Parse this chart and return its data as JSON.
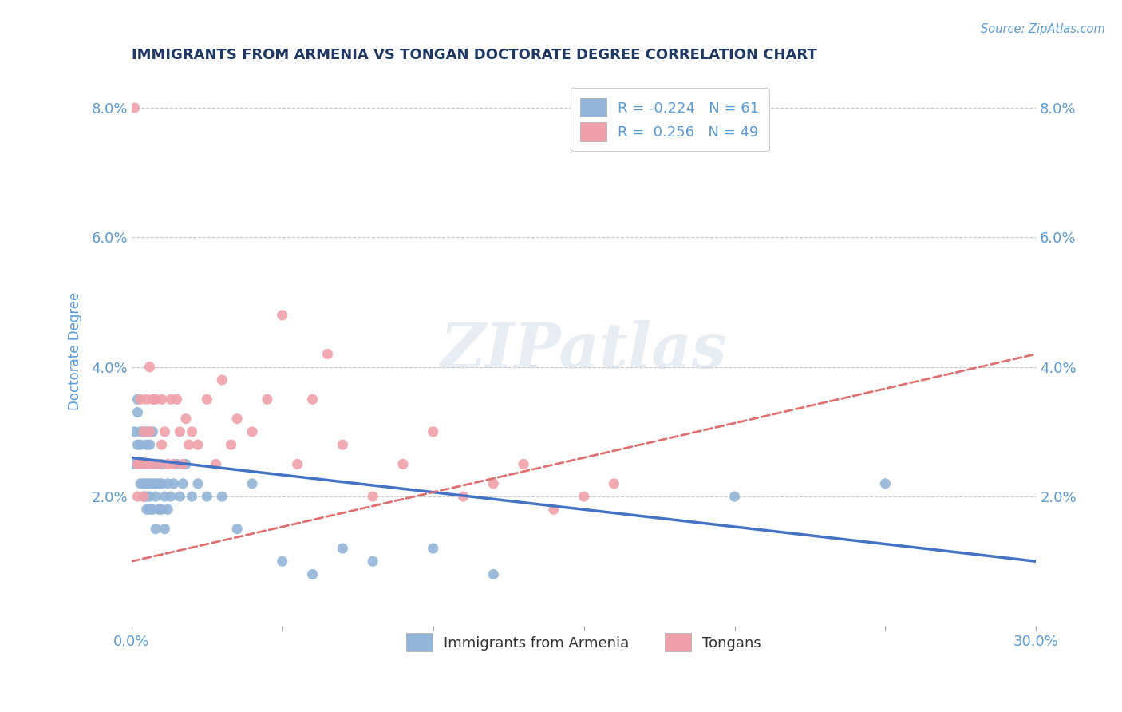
{
  "title": "IMMIGRANTS FROM ARMENIA VS TONGAN DOCTORATE DEGREE CORRELATION CHART",
  "source": "Source: ZipAtlas.com",
  "ylabel": "Doctorate Degree",
  "xlim": [
    0.0,
    0.3
  ],
  "ylim": [
    0.0,
    0.085
  ],
  "xticks": [
    0.0,
    0.05,
    0.1,
    0.15,
    0.2,
    0.25,
    0.3
  ],
  "xtick_labels": [
    "0.0%",
    "",
    "",
    "",
    "",
    "",
    "30.0%"
  ],
  "yticks": [
    0.0,
    0.02,
    0.04,
    0.06,
    0.08
  ],
  "ytick_labels": [
    "",
    "2.0%",
    "4.0%",
    "6.0%",
    "8.0%"
  ],
  "legend_label1": "Immigrants from Armenia",
  "legend_label2": "Tongans",
  "blue_color": "#4472c4",
  "pink_color": "#e07070",
  "blue_scatter_color": "#92b4d8",
  "pink_scatter_color": "#f0a0aa",
  "watermark": "ZIPatlas",
  "title_color": "#1f3864",
  "axis_color": "#5b9bd5",
  "tick_color": "#5b9bd5",
  "grid_color": "#c8c8c8",
  "blue_R": -0.224,
  "blue_N": 61,
  "pink_R": 0.256,
  "pink_N": 49,
  "blue_trend_start_x": 0.0,
  "blue_trend_start_y": 0.026,
  "blue_trend_end_x": 0.3,
  "blue_trend_end_y": 0.01,
  "pink_trend_start_x": 0.0,
  "pink_trend_start_y": 0.01,
  "pink_trend_end_x": 0.3,
  "pink_trend_end_y": 0.042,
  "blue_points_x": [
    0.001,
    0.001,
    0.002,
    0.002,
    0.002,
    0.003,
    0.003,
    0.003,
    0.003,
    0.004,
    0.004,
    0.004,
    0.004,
    0.005,
    0.005,
    0.005,
    0.005,
    0.005,
    0.005,
    0.006,
    0.006,
    0.006,
    0.006,
    0.006,
    0.007,
    0.007,
    0.007,
    0.007,
    0.008,
    0.008,
    0.008,
    0.008,
    0.009,
    0.009,
    0.01,
    0.01,
    0.01,
    0.011,
    0.011,
    0.012,
    0.012,
    0.013,
    0.014,
    0.015,
    0.016,
    0.017,
    0.018,
    0.02,
    0.022,
    0.025,
    0.03,
    0.035,
    0.04,
    0.05,
    0.06,
    0.07,
    0.08,
    0.1,
    0.12,
    0.2,
    0.25
  ],
  "blue_points_y": [
    0.03,
    0.025,
    0.035,
    0.028,
    0.033,
    0.03,
    0.025,
    0.022,
    0.028,
    0.03,
    0.025,
    0.022,
    0.02,
    0.03,
    0.025,
    0.02,
    0.028,
    0.022,
    0.018,
    0.028,
    0.025,
    0.02,
    0.022,
    0.018,
    0.025,
    0.022,
    0.018,
    0.03,
    0.022,
    0.025,
    0.02,
    0.015,
    0.022,
    0.018,
    0.025,
    0.022,
    0.018,
    0.02,
    0.015,
    0.022,
    0.018,
    0.02,
    0.022,
    0.025,
    0.02,
    0.022,
    0.025,
    0.02,
    0.022,
    0.02,
    0.02,
    0.015,
    0.022,
    0.01,
    0.008,
    0.012,
    0.01,
    0.012,
    0.008,
    0.02,
    0.022
  ],
  "pink_points_x": [
    0.001,
    0.002,
    0.002,
    0.003,
    0.003,
    0.004,
    0.004,
    0.005,
    0.005,
    0.006,
    0.006,
    0.007,
    0.007,
    0.008,
    0.009,
    0.01,
    0.01,
    0.011,
    0.012,
    0.013,
    0.014,
    0.015,
    0.016,
    0.017,
    0.018,
    0.019,
    0.02,
    0.022,
    0.025,
    0.028,
    0.03,
    0.033,
    0.035,
    0.04,
    0.045,
    0.05,
    0.055,
    0.06,
    0.065,
    0.07,
    0.08,
    0.09,
    0.1,
    0.11,
    0.12,
    0.13,
    0.14,
    0.15,
    0.16
  ],
  "pink_points_y": [
    0.08,
    0.025,
    0.02,
    0.035,
    0.025,
    0.03,
    0.02,
    0.035,
    0.025,
    0.04,
    0.03,
    0.035,
    0.025,
    0.035,
    0.025,
    0.035,
    0.028,
    0.03,
    0.025,
    0.035,
    0.025,
    0.035,
    0.03,
    0.025,
    0.032,
    0.028,
    0.03,
    0.028,
    0.035,
    0.025,
    0.038,
    0.028,
    0.032,
    0.03,
    0.035,
    0.048,
    0.025,
    0.035,
    0.042,
    0.028,
    0.02,
    0.025,
    0.03,
    0.02,
    0.022,
    0.025,
    0.018,
    0.02,
    0.022
  ]
}
